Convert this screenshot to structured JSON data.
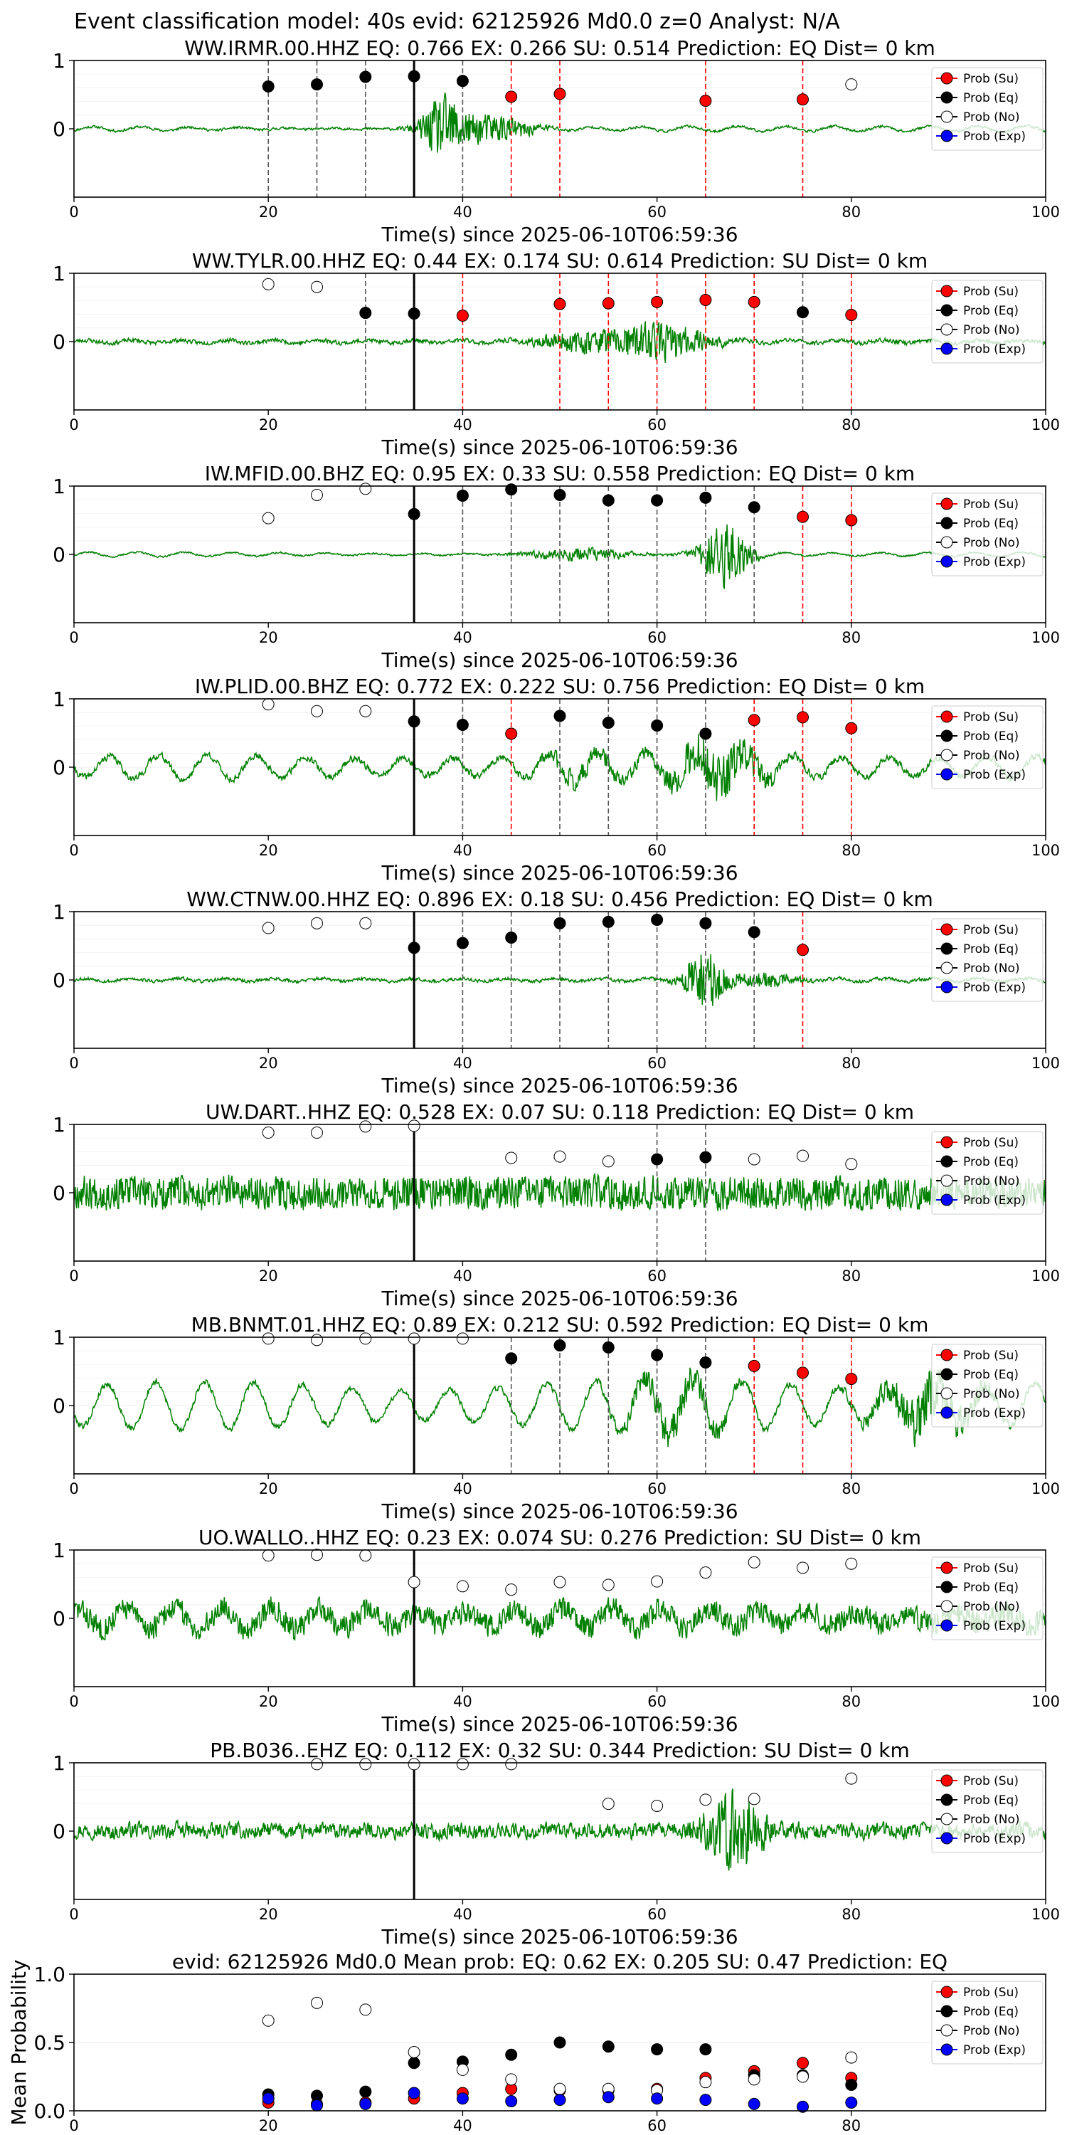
{
  "suptitle": "Event classification model: 40s evid: 62125926 Md0.0 z=0 Analyst: N/A",
  "colors": {
    "waveform": "#008000",
    "su": "#ff0000",
    "eq": "#000000",
    "no": "#ffffff",
    "exp": "#0000ff",
    "pick_line": "#000000"
  },
  "chart_data": [
    {
      "type": "line",
      "title": "WW.IRMR.00.HHZ   EQ: 0.766  EX: 0.266  SU: 0.514   Prediction: EQ    Dist= 0 km",
      "xlabel": "Time(s) since 2025-06-10T06:59:36",
      "ylabel": "",
      "xlim": [
        0,
        100
      ],
      "ylim": [
        -1,
        1
      ],
      "xticks": [
        0,
        20,
        40,
        60,
        80,
        100
      ],
      "yticks": [
        0,
        1
      ],
      "pick_time": 35,
      "noise_level": 0.03,
      "waveform_seed": 11,
      "bursts": [
        [
          38,
          0.75,
          2.2
        ],
        [
          43,
          0.35,
          4
        ]
      ],
      "bg_osc": 0.03,
      "legend": [
        "Prob (Su)",
        "Prob (Eq)",
        "Prob (No)",
        "Prob (Exp)"
      ],
      "points": [
        {
          "t": 20,
          "p": 0.62,
          "cls": "eq"
        },
        {
          "t": 25,
          "p": 0.65,
          "cls": "eq"
        },
        {
          "t": 30,
          "p": 0.76,
          "cls": "eq"
        },
        {
          "t": 35,
          "p": 0.77,
          "cls": "eq"
        },
        {
          "t": 40,
          "p": 0.7,
          "cls": "eq"
        },
        {
          "t": 45,
          "p": 0.47,
          "cls": "su"
        },
        {
          "t": 50,
          "p": 0.51,
          "cls": "su"
        },
        {
          "t": 65,
          "p": 0.41,
          "cls": "su"
        },
        {
          "t": 75,
          "p": 0.43,
          "cls": "su"
        },
        {
          "t": 80,
          "p": 0.65,
          "cls": "no"
        }
      ]
    },
    {
      "type": "line",
      "title": "WW.TYLR.00.HHZ   EQ: 0.44  EX: 0.174  SU: 0.614   Prediction: SU    Dist= 0 km",
      "xlabel": "Time(s) since 2025-06-10T06:59:36",
      "ylabel": "",
      "xlim": [
        0,
        100
      ],
      "ylim": [
        -1,
        1
      ],
      "xticks": [
        0,
        20,
        40,
        60,
        80,
        100
      ],
      "yticks": [
        0,
        1
      ],
      "pick_time": 35,
      "noise_level": 0.05,
      "waveform_seed": 23,
      "bursts": [
        [
          60,
          0.45,
          5
        ],
        [
          52,
          0.2,
          4
        ]
      ],
      "bg_osc": 0.0,
      "legend": [
        "Prob (Su)",
        "Prob (Eq)",
        "Prob (No)",
        "Prob (Exp)"
      ],
      "points": [
        {
          "t": 20,
          "p": 0.84,
          "cls": "no"
        },
        {
          "t": 25,
          "p": 0.8,
          "cls": "no"
        },
        {
          "t": 30,
          "p": 0.42,
          "cls": "eq"
        },
        {
          "t": 35,
          "p": 0.41,
          "cls": "eq"
        },
        {
          "t": 40,
          "p": 0.38,
          "cls": "su"
        },
        {
          "t": 50,
          "p": 0.55,
          "cls": "su"
        },
        {
          "t": 55,
          "p": 0.56,
          "cls": "su"
        },
        {
          "t": 60,
          "p": 0.58,
          "cls": "su"
        },
        {
          "t": 65,
          "p": 0.61,
          "cls": "su"
        },
        {
          "t": 70,
          "p": 0.58,
          "cls": "su"
        },
        {
          "t": 75,
          "p": 0.43,
          "cls": "eq"
        },
        {
          "t": 80,
          "p": 0.39,
          "cls": "su"
        }
      ]
    },
    {
      "type": "line",
      "title": "IW.MFID.00.BHZ   EQ: 0.95  EX: 0.33  SU: 0.558   Prediction: EQ    Dist= 0 km",
      "xlabel": "Time(s) since 2025-06-10T06:59:36",
      "ylabel": "",
      "xlim": [
        0,
        100
      ],
      "ylim": [
        -1,
        1
      ],
      "xticks": [
        0,
        20,
        40,
        60,
        80,
        100
      ],
      "yticks": [
        0,
        1
      ],
      "pick_time": 35,
      "noise_level": 0.02,
      "waveform_seed": 37,
      "bursts": [
        [
          67,
          0.8,
          2.5
        ],
        [
          52,
          0.15,
          5
        ]
      ],
      "bg_osc": 0.02,
      "legend": [
        "Prob (Su)",
        "Prob (Eq)",
        "Prob (No)",
        "Prob (Exp)"
      ],
      "points": [
        {
          "t": 20,
          "p": 0.53,
          "cls": "no"
        },
        {
          "t": 25,
          "p": 0.87,
          "cls": "no"
        },
        {
          "t": 30,
          "p": 0.96,
          "cls": "no"
        },
        {
          "t": 35,
          "p": 0.59,
          "cls": "eq"
        },
        {
          "t": 40,
          "p": 0.86,
          "cls": "eq"
        },
        {
          "t": 45,
          "p": 0.95,
          "cls": "eq"
        },
        {
          "t": 50,
          "p": 0.87,
          "cls": "eq"
        },
        {
          "t": 55,
          "p": 0.79,
          "cls": "eq"
        },
        {
          "t": 60,
          "p": 0.79,
          "cls": "eq"
        },
        {
          "t": 65,
          "p": 0.83,
          "cls": "eq"
        },
        {
          "t": 70,
          "p": 0.69,
          "cls": "eq"
        },
        {
          "t": 75,
          "p": 0.55,
          "cls": "su"
        },
        {
          "t": 80,
          "p": 0.5,
          "cls": "su"
        }
      ]
    },
    {
      "type": "line",
      "title": "IW.PLID.00.BHZ   EQ: 0.772  EX: 0.222  SU: 0.756   Prediction: EQ    Dist= 0 km",
      "xlabel": "Time(s) since 2025-06-10T06:59:36",
      "ylabel": "",
      "xlim": [
        0,
        100
      ],
      "ylim": [
        -1,
        1
      ],
      "xticks": [
        0,
        20,
        40,
        60,
        80,
        100
      ],
      "yticks": [
        0,
        1
      ],
      "pick_time": 35,
      "noise_level": 0.08,
      "waveform_seed": 41,
      "bursts": [
        [
          66,
          0.55,
          5
        ],
        [
          52,
          0.2,
          4
        ]
      ],
      "bg_osc": 0.2,
      "legend": [
        "Prob (Su)",
        "Prob (Eq)",
        "Prob (No)",
        "Prob (Exp)"
      ],
      "points": [
        {
          "t": 20,
          "p": 0.92,
          "cls": "no"
        },
        {
          "t": 25,
          "p": 0.82,
          "cls": "no"
        },
        {
          "t": 30,
          "p": 0.82,
          "cls": "no"
        },
        {
          "t": 35,
          "p": 0.67,
          "cls": "eq"
        },
        {
          "t": 40,
          "p": 0.62,
          "cls": "eq"
        },
        {
          "t": 45,
          "p": 0.49,
          "cls": "su"
        },
        {
          "t": 50,
          "p": 0.75,
          "cls": "eq"
        },
        {
          "t": 55,
          "p": 0.65,
          "cls": "eq"
        },
        {
          "t": 60,
          "p": 0.61,
          "cls": "eq"
        },
        {
          "t": 65,
          "p": 0.49,
          "cls": "eq"
        },
        {
          "t": 70,
          "p": 0.69,
          "cls": "su"
        },
        {
          "t": 75,
          "p": 0.73,
          "cls": "su"
        },
        {
          "t": 80,
          "p": 0.57,
          "cls": "su"
        }
      ]
    },
    {
      "type": "line",
      "title": "WW.CTNW.00.HHZ   EQ: 0.896  EX: 0.18  SU: 0.456   Prediction: EQ    Dist= 0 km",
      "xlabel": "Time(s) since 2025-06-10T06:59:36",
      "ylabel": "",
      "xlim": [
        0,
        100
      ],
      "ylim": [
        -1,
        1
      ],
      "xticks": [
        0,
        20,
        40,
        60,
        80,
        100
      ],
      "yticks": [
        0,
        1
      ],
      "pick_time": 35,
      "noise_level": 0.04,
      "waveform_seed": 53,
      "bursts": [
        [
          65,
          0.85,
          2.0
        ],
        [
          71,
          0.2,
          3
        ]
      ],
      "bg_osc": 0.0,
      "legend": [
        "Prob (Su)",
        "Prob (Eq)",
        "Prob (No)",
        "Prob (Exp)"
      ],
      "points": [
        {
          "t": 20,
          "p": 0.76,
          "cls": "no"
        },
        {
          "t": 25,
          "p": 0.83,
          "cls": "no"
        },
        {
          "t": 30,
          "p": 0.83,
          "cls": "no"
        },
        {
          "t": 35,
          "p": 0.47,
          "cls": "eq"
        },
        {
          "t": 40,
          "p": 0.54,
          "cls": "eq"
        },
        {
          "t": 45,
          "p": 0.62,
          "cls": "eq"
        },
        {
          "t": 50,
          "p": 0.83,
          "cls": "eq"
        },
        {
          "t": 55,
          "p": 0.85,
          "cls": "eq"
        },
        {
          "t": 60,
          "p": 0.88,
          "cls": "eq"
        },
        {
          "t": 65,
          "p": 0.83,
          "cls": "eq"
        },
        {
          "t": 70,
          "p": 0.7,
          "cls": "eq"
        },
        {
          "t": 75,
          "p": 0.44,
          "cls": "su"
        }
      ]
    },
    {
      "type": "line",
      "title": "UW.DART..HHZ   EQ: 0.528  EX: 0.07  SU: 0.118   Prediction: EQ    Dist= 0 km",
      "xlabel": "Time(s) since 2025-06-10T06:59:36",
      "ylabel": "",
      "xlim": [
        0,
        100
      ],
      "ylim": [
        -1,
        1
      ],
      "xticks": [
        0,
        20,
        40,
        60,
        80,
        100
      ],
      "yticks": [
        0,
        1
      ],
      "pick_time": 35,
      "noise_level": 0.42,
      "waveform_seed": 67,
      "bursts": [],
      "bg_osc": 0.0,
      "legend": [
        "Prob (Su)",
        "Prob (Eq)",
        "Prob (No)",
        "Prob (Exp)"
      ],
      "points": [
        {
          "t": 20,
          "p": 0.88,
          "cls": "no"
        },
        {
          "t": 25,
          "p": 0.88,
          "cls": "no"
        },
        {
          "t": 30,
          "p": 0.97,
          "cls": "no"
        },
        {
          "t": 35,
          "p": 0.98,
          "cls": "no"
        },
        {
          "t": 45,
          "p": 0.51,
          "cls": "no"
        },
        {
          "t": 50,
          "p": 0.53,
          "cls": "no"
        },
        {
          "t": 55,
          "p": 0.46,
          "cls": "no"
        },
        {
          "t": 60,
          "p": 0.49,
          "cls": "eq"
        },
        {
          "t": 65,
          "p": 0.52,
          "cls": "eq"
        },
        {
          "t": 70,
          "p": 0.49,
          "cls": "no"
        },
        {
          "t": 75,
          "p": 0.54,
          "cls": "no"
        },
        {
          "t": 80,
          "p": 0.42,
          "cls": "no"
        }
      ]
    },
    {
      "type": "line",
      "title": "MB.BNMT.01.HHZ   EQ: 0.89  EX: 0.212  SU: 0.592   Prediction: EQ    Dist= 0 km",
      "xlabel": "Time(s) since 2025-06-10T06:59:36",
      "ylabel": "",
      "xlim": [
        0,
        100
      ],
      "ylim": [
        -1,
        1
      ],
      "xticks": [
        0,
        20,
        40,
        60,
        80,
        100
      ],
      "yticks": [
        0,
        1
      ],
      "pick_time": 35,
      "noise_level": 0.07,
      "waveform_seed": 79,
      "bursts": [
        [
          88,
          0.6,
          5
        ],
        [
          62,
          0.35,
          5
        ]
      ],
      "bg_osc": 0.38,
      "legend": [
        "Prob (Su)",
        "Prob (Eq)",
        "Prob (No)",
        "Prob (Exp)"
      ],
      "points": [
        {
          "t": 20,
          "p": 0.98,
          "cls": "no"
        },
        {
          "t": 25,
          "p": 0.96,
          "cls": "no"
        },
        {
          "t": 30,
          "p": 0.98,
          "cls": "no"
        },
        {
          "t": 35,
          "p": 0.98,
          "cls": "no"
        },
        {
          "t": 40,
          "p": 0.98,
          "cls": "no"
        },
        {
          "t": 45,
          "p": 0.69,
          "cls": "eq"
        },
        {
          "t": 50,
          "p": 0.88,
          "cls": "eq"
        },
        {
          "t": 55,
          "p": 0.85,
          "cls": "eq"
        },
        {
          "t": 60,
          "p": 0.74,
          "cls": "eq"
        },
        {
          "t": 65,
          "p": 0.63,
          "cls": "eq"
        },
        {
          "t": 70,
          "p": 0.58,
          "cls": "su"
        },
        {
          "t": 75,
          "p": 0.48,
          "cls": "su"
        },
        {
          "t": 80,
          "p": 0.39,
          "cls": "su"
        }
      ]
    },
    {
      "type": "line",
      "title": "UO.WALLO..HHZ   EQ: 0.23  EX: 0.074  SU: 0.276   Prediction: SU    Dist= 0 km",
      "xlabel": "Time(s) since 2025-06-10T06:59:36",
      "ylabel": "",
      "xlim": [
        0,
        100
      ],
      "ylim": [
        -1,
        1
      ],
      "xticks": [
        0,
        20,
        40,
        60,
        80,
        100
      ],
      "yticks": [
        0,
        1
      ],
      "pick_time": 35,
      "noise_level": 0.3,
      "waveform_seed": 83,
      "bursts": [],
      "bg_osc": 0.15,
      "legend": [
        "Prob (Su)",
        "Prob (Eq)",
        "Prob (No)",
        "Prob (Exp)"
      ],
      "points": [
        {
          "t": 20,
          "p": 0.92,
          "cls": "no"
        },
        {
          "t": 25,
          "p": 0.93,
          "cls": "no"
        },
        {
          "t": 30,
          "p": 0.92,
          "cls": "no"
        },
        {
          "t": 35,
          "p": 0.53,
          "cls": "no"
        },
        {
          "t": 40,
          "p": 0.47,
          "cls": "no"
        },
        {
          "t": 45,
          "p": 0.42,
          "cls": "no"
        },
        {
          "t": 50,
          "p": 0.53,
          "cls": "no"
        },
        {
          "t": 55,
          "p": 0.49,
          "cls": "no"
        },
        {
          "t": 60,
          "p": 0.54,
          "cls": "no"
        },
        {
          "t": 65,
          "p": 0.67,
          "cls": "no"
        },
        {
          "t": 70,
          "p": 0.82,
          "cls": "no"
        },
        {
          "t": 75,
          "p": 0.74,
          "cls": "no"
        },
        {
          "t": 80,
          "p": 0.8,
          "cls": "no"
        }
      ]
    },
    {
      "type": "line",
      "title": "PB.B036..EHZ   EQ: 0.112  EX: 0.32  SU: 0.344   Prediction: SU    Dist= 0 km",
      "xlabel": "Time(s) since 2025-06-10T06:59:36",
      "ylabel": "",
      "xlim": [
        0,
        100
      ],
      "ylim": [
        -1,
        1
      ],
      "xticks": [
        0,
        20,
        40,
        60,
        80,
        100
      ],
      "yticks": [
        0,
        1
      ],
      "pick_time": 35,
      "noise_level": 0.18,
      "waveform_seed": 97,
      "bursts": [
        [
          68,
          0.85,
          3
        ]
      ],
      "bg_osc": 0.0,
      "legend": [
        "Prob (Su)",
        "Prob (Eq)",
        "Prob (No)",
        "Prob (Exp)"
      ],
      "points": [
        {
          "t": 25,
          "p": 0.98,
          "cls": "no"
        },
        {
          "t": 30,
          "p": 0.98,
          "cls": "no"
        },
        {
          "t": 35,
          "p": 0.98,
          "cls": "no"
        },
        {
          "t": 40,
          "p": 0.98,
          "cls": "no"
        },
        {
          "t": 45,
          "p": 0.98,
          "cls": "no"
        },
        {
          "t": 55,
          "p": 0.4,
          "cls": "no"
        },
        {
          "t": 60,
          "p": 0.37,
          "cls": "no"
        },
        {
          "t": 65,
          "p": 0.46,
          "cls": "no"
        },
        {
          "t": 70,
          "p": 0.47,
          "cls": "no"
        },
        {
          "t": 80,
          "p": 0.77,
          "cls": "no"
        }
      ]
    },
    {
      "type": "scatter",
      "title": "evid: 62125926  Md0.0   Mean prob:   EQ: 0.62  EX: 0.205  SU: 0.47   Prediction: EQ",
      "xlabel": "",
      "ylabel": "Mean Probability",
      "xlim": [
        0,
        100
      ],
      "ylim": [
        0,
        1
      ],
      "xticks": [
        0,
        20,
        40,
        60,
        80
      ],
      "yticks": [
        0.0,
        0.5,
        1.0
      ],
      "ytick_labels": [
        "0.0",
        "0.5",
        "1.0"
      ],
      "legend": [
        "Prob (Su)",
        "Prob (Eq)",
        "Prob (No)",
        "Prob (Exp)"
      ],
      "x": [
        20,
        25,
        30,
        35,
        40,
        45,
        50,
        55,
        60,
        65,
        70,
        75,
        80
      ],
      "series": [
        {
          "name": "Prob (Su)",
          "cls": "su",
          "values": [
            0.06,
            0.05,
            0.06,
            0.09,
            0.13,
            0.16,
            0.15,
            0.15,
            0.16,
            0.24,
            0.29,
            0.35,
            0.24
          ]
        },
        {
          "name": "Prob (Eq)",
          "cls": "eq",
          "values": [
            0.12,
            0.11,
            0.14,
            0.35,
            0.36,
            0.41,
            0.5,
            0.47,
            0.45,
            0.45,
            0.26,
            0.26,
            0.19
          ]
        },
        {
          "name": "Prob (No)",
          "cls": "no",
          "values": [
            0.66,
            0.79,
            0.74,
            0.43,
            0.3,
            0.23,
            0.16,
            0.16,
            0.15,
            0.21,
            0.23,
            0.25,
            0.39
          ]
        },
        {
          "name": "Prob (Exp)",
          "cls": "exp",
          "values": [
            0.09,
            0.04,
            0.05,
            0.13,
            0.09,
            0.07,
            0.08,
            0.1,
            0.09,
            0.08,
            0.05,
            0.03,
            0.06
          ]
        }
      ]
    }
  ]
}
